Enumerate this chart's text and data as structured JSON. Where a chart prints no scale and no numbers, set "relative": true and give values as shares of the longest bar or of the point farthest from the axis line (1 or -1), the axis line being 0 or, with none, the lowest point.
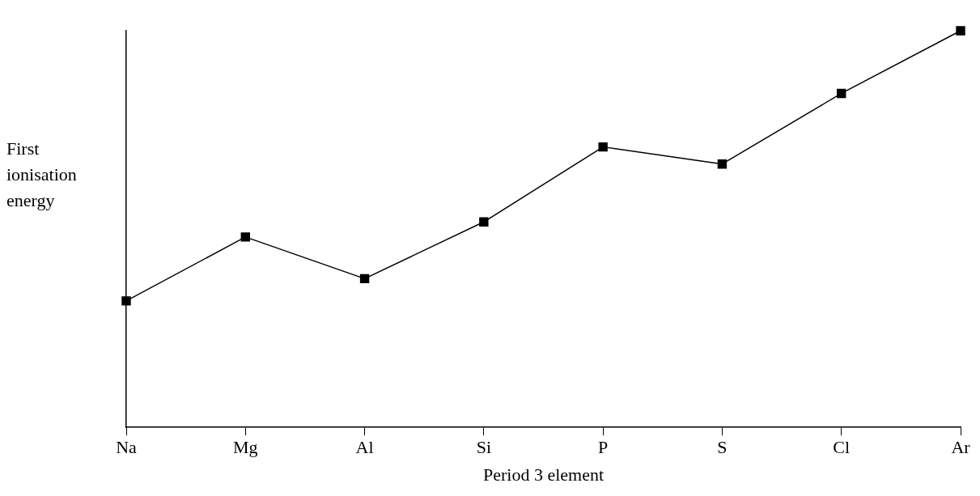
{
  "chart_data": {
    "type": "line",
    "xlabel": "Period 3 element",
    "ylabel": "First ionisation energy",
    "categories": [
      "Na",
      "Mg",
      "Al",
      "Si",
      "P",
      "S",
      "Cl",
      "Ar"
    ],
    "series": [
      {
        "color": "#000000",
        "values": [
          0.319,
          0.48,
          0.375,
          0.518,
          0.707,
          0.664,
          0.842,
          1.0
        ]
      }
    ],
    "relative": true,
    "marker": "square",
    "line_style": "solid",
    "grid": false,
    "legend": false
  }
}
